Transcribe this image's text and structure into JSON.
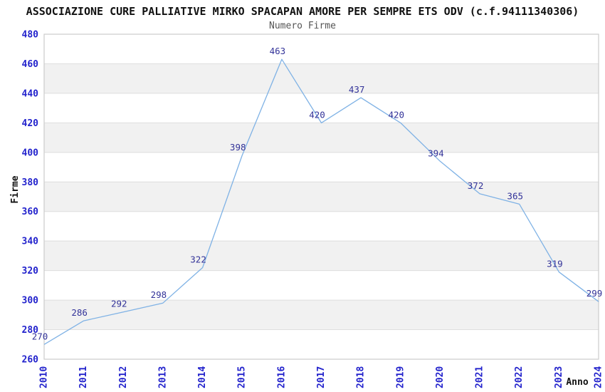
{
  "chart_data": {
    "type": "line",
    "title": "ASSOCIAZIONE CURE PALLIATIVE MIRKO SPACAPAN AMORE PER SEMPRE ETS ODV (c.f.94111340306)",
    "subtitle": "Numero Firme",
    "xlabel": "Anno",
    "ylabel": "Firme",
    "x": [
      "2010",
      "2011",
      "2012",
      "2013",
      "2014",
      "2015",
      "2016",
      "2017",
      "2018",
      "2019",
      "2020",
      "2021",
      "2022",
      "2023",
      "2024"
    ],
    "values": [
      270,
      286,
      292,
      298,
      322,
      398,
      463,
      420,
      437,
      420,
      394,
      372,
      365,
      319,
      299
    ],
    "ylim": [
      260,
      480
    ],
    "ytick_step": 20,
    "x_tick_rotation": -90,
    "grid": "horizontal-gridlines-with-alternating-bands",
    "legend": "none",
    "markers": "none",
    "data_labels_shown": true,
    "colors": {
      "line": "#7FB2E5",
      "tick_label": "#2222CC",
      "data_label": "#333399",
      "band_fill": "#F1F1F1",
      "grid_line": "#DEDEDE",
      "plot_border": "#CCCCCC",
      "title_text": "#111111",
      "subtitle_text": "#555555",
      "axis_title_text": "#111111",
      "background": "#FFFFFF"
    }
  }
}
